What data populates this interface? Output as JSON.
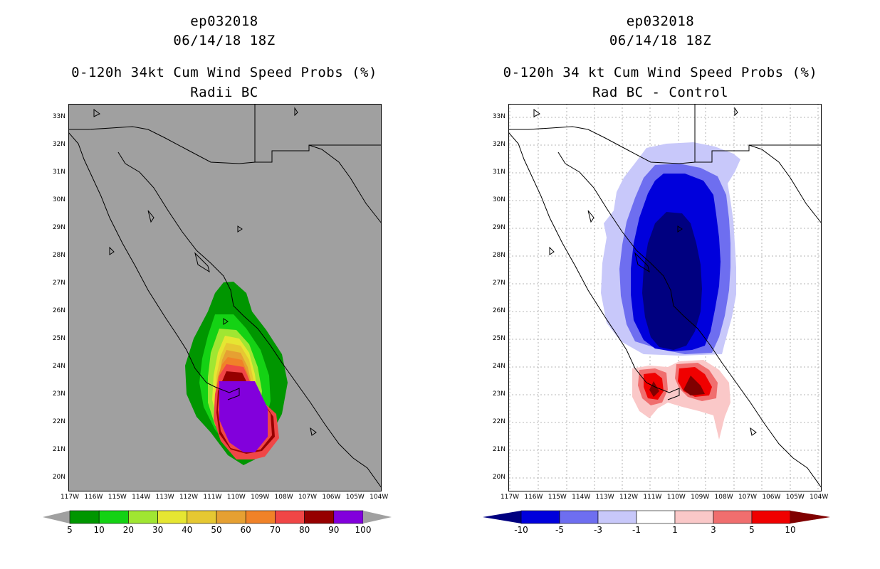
{
  "left_panel": {
    "title_line1": "ep032018",
    "title_line2": "06/14/18 18Z",
    "title_line3": "0-120h 34kt Cum Wind Speed Probs (%)",
    "title_line4": "Radii BC",
    "colorbar": {
      "labels": [
        "5",
        "10",
        "20",
        "30",
        "40",
        "50",
        "60",
        "70",
        "80",
        "90",
        "100"
      ],
      "colors": [
        "#009600",
        "#14d214",
        "#a0e632",
        "#e6e632",
        "#e6c832",
        "#e6a032",
        "#f08228",
        "#f04646",
        "#960000",
        "#8200dc"
      ],
      "end_color": "#a0a0a0"
    },
    "background_color": "#a0a0a0"
  },
  "right_panel": {
    "title_line1": "ep032018",
    "title_line2": "06/14/18 18Z",
    "title_line3": "0-120h 34 kt Cum Wind Speed Probs (%)",
    "title_line4": "Rad BC - Control",
    "colorbar": {
      "labels": [
        "-10",
        "-5",
        "-3",
        "-1",
        "1",
        "3",
        "5",
        "10"
      ],
      "colors": [
        "#0000dc",
        "#6e6ef0",
        "#c8c8fa",
        "#ffffff",
        "#fac8c8",
        "#f06e6e",
        "#f00000"
      ],
      "low_color": "#000080",
      "high_color": "#800000"
    }
  },
  "axes": {
    "lat_labels": [
      "33N",
      "32N",
      "31N",
      "30N",
      "29N",
      "28N",
      "27N",
      "26N",
      "25N",
      "24N",
      "23N",
      "22N",
      "21N",
      "20N"
    ],
    "lon_labels": [
      "117W",
      "116W",
      "115W",
      "114W",
      "113W",
      "112W",
      "111W",
      "110W",
      "109W",
      "108W",
      "107W",
      "106W",
      "105W",
      "104W"
    ]
  }
}
